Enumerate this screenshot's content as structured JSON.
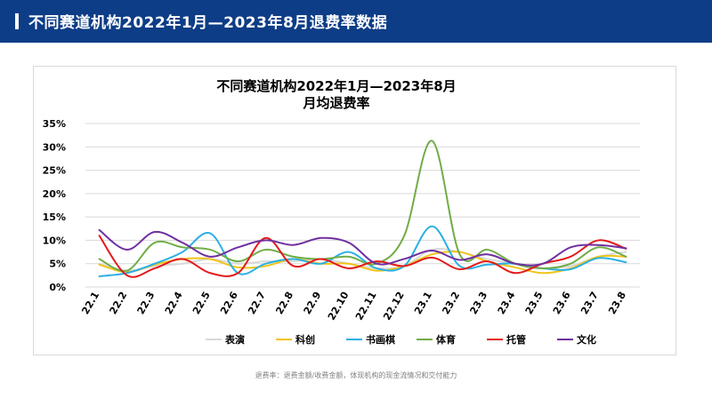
{
  "header": {
    "title": "不同赛道机构2022年1月—2023年8月退费率数据"
  },
  "footnote": "退费率：退费金额/收费金额，体现机构的现金流情况和交付能力",
  "chart_data": {
    "type": "line",
    "title_line1": "不同赛道机构2022年1月—2023年8月",
    "title_line2": "月均退费率",
    "xlabel": "",
    "ylabel": "",
    "ylim": [
      0,
      35
    ],
    "yticks": [
      "0%",
      "5%",
      "10%",
      "15%",
      "20%",
      "25%",
      "30%",
      "35%"
    ],
    "grid": true,
    "legend_position": "bottom",
    "categories": [
      "22.1",
      "22.2",
      "22.3",
      "22.4",
      "22.5",
      "22.6",
      "22.7",
      "22.8",
      "22.9",
      "22.10",
      "22.11",
      "22.12",
      "23.1",
      "23.2",
      "23.3",
      "23.4",
      "23.5",
      "23.6",
      "23.7",
      "23.8"
    ],
    "series": [
      {
        "name": "表演",
        "color": "#d9d9d9",
        "values": [
          5.0,
          3.5,
          4.5,
          5.0,
          6.0,
          5.0,
          5.5,
          5.5,
          6.0,
          5.0,
          4.0,
          4.5,
          8.0,
          7.5,
          6.0,
          5.0,
          4.0,
          4.5,
          6.5,
          7.5
        ]
      },
      {
        "name": "科创",
        "color": "#f0c419",
        "values": [
          4.8,
          3.2,
          4.8,
          6.0,
          6.0,
          4.2,
          4.5,
          6.0,
          5.0,
          5.0,
          3.5,
          4.5,
          7.0,
          7.5,
          5.5,
          4.2,
          3.0,
          4.0,
          6.5,
          6.5
        ]
      },
      {
        "name": "书画棋",
        "color": "#2bb0e4",
        "values": [
          2.3,
          3.0,
          5.0,
          7.5,
          11.5,
          3.0,
          5.0,
          6.0,
          5.0,
          7.5,
          4.0,
          4.5,
          13.0,
          4.5,
          4.8,
          5.0,
          4.0,
          3.8,
          6.2,
          5.3
        ]
      },
      {
        "name": "体育",
        "color": "#70ad47",
        "values": [
          6.0,
          3.5,
          9.5,
          8.5,
          8.0,
          5.5,
          8.0,
          6.5,
          6.0,
          6.5,
          5.0,
          11.0,
          31.3,
          7.0,
          8.0,
          5.0,
          4.0,
          5.0,
          8.5,
          6.5
        ]
      },
      {
        "name": "托管",
        "color": "#e31a1c",
        "values": [
          11.0,
          2.5,
          4.0,
          6.0,
          3.0,
          3.0,
          10.5,
          4.5,
          6.0,
          4.0,
          5.5,
          4.5,
          6.3,
          3.8,
          5.5,
          3.0,
          5.0,
          6.5,
          10.0,
          8.2
        ]
      },
      {
        "name": "文化",
        "color": "#7030a0",
        "values": [
          12.2,
          8.0,
          11.8,
          9.5,
          6.5,
          8.5,
          10.0,
          9.0,
          10.5,
          9.5,
          5.0,
          6.0,
          7.8,
          5.8,
          7.0,
          5.0,
          5.0,
          8.5,
          9.0,
          8.3
        ]
      }
    ]
  }
}
